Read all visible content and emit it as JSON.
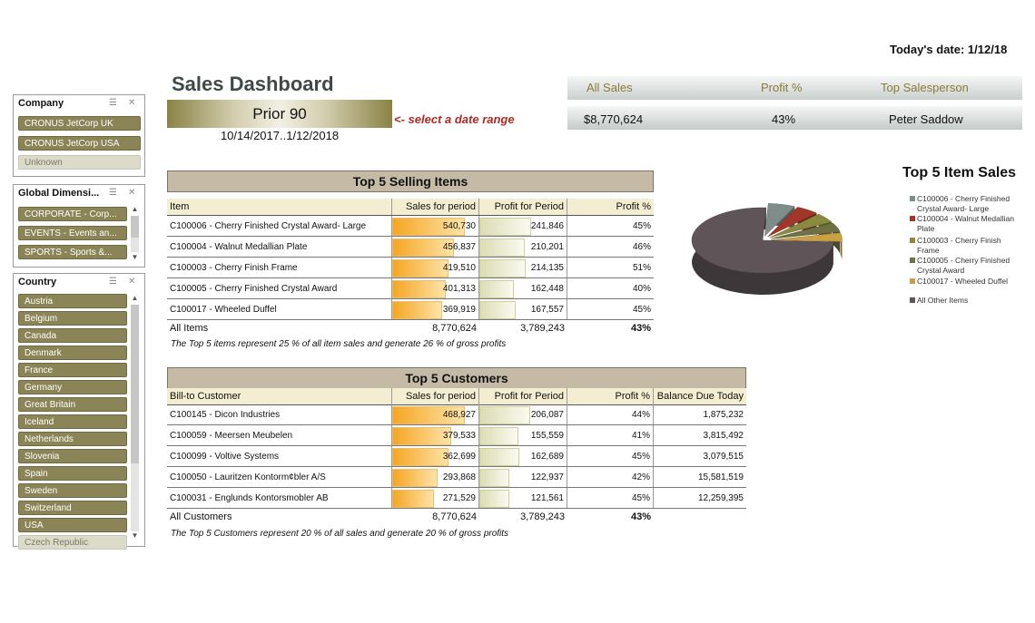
{
  "header": {
    "today_label": "Today's date: 1/12/18",
    "title": "Sales Dashboard",
    "range_button": "Prior 90",
    "range_hint": "<- select a date range",
    "range_dates": "10/14/2017..1/12/2018"
  },
  "kpi": {
    "labels": [
      "All Sales",
      "Profit %",
      "Top Salesperson"
    ],
    "values": [
      "$8,770,624",
      "43%",
      "Peter Saddow"
    ]
  },
  "slicers": {
    "company": {
      "title": "Company",
      "items": [
        {
          "label": "CRONUS JetCorp UK",
          "selected": true
        },
        {
          "label": "CRONUS JetCorp USA",
          "selected": true
        },
        {
          "label": "Unknown",
          "selected": false
        }
      ]
    },
    "dimension": {
      "title": "Global Dimensi...",
      "items": [
        {
          "label": "CORPORATE - Corp...",
          "selected": true
        },
        {
          "label": "EVENTS - Events an...",
          "selected": true
        },
        {
          "label": "SPORTS - Sports &...",
          "selected": true
        }
      ]
    },
    "country": {
      "title": "Country",
      "items": [
        {
          "label": "Austria",
          "selected": true
        },
        {
          "label": "Belgium",
          "selected": true
        },
        {
          "label": "Canada",
          "selected": true
        },
        {
          "label": "Denmark",
          "selected": true
        },
        {
          "label": "France",
          "selected": true
        },
        {
          "label": "Germany",
          "selected": true
        },
        {
          "label": "Great Britain",
          "selected": true
        },
        {
          "label": "Iceland",
          "selected": true
        },
        {
          "label": "Netherlands",
          "selected": true
        },
        {
          "label": "Slovenia",
          "selected": true
        },
        {
          "label": "Spain",
          "selected": true
        },
        {
          "label": "Sweden",
          "selected": true
        },
        {
          "label": "Switzerland",
          "selected": true
        },
        {
          "label": "USA",
          "selected": true
        },
        {
          "label": "Czech Republic",
          "selected": false
        }
      ]
    },
    "icons": [
      "multi-select-icon",
      "clear-filter-icon"
    ]
  },
  "items_table": {
    "title": "Top 5 Selling Items",
    "headers": [
      "Item",
      "Sales for period",
      "Profit for Period",
      "Profit %"
    ],
    "rows": [
      {
        "name": "C100006 - Cherry Finished Crystal Award- Large",
        "sales": "540,730",
        "profit": "241,846",
        "pct": "45%",
        "sales_v": 540730,
        "profit_v": 241846
      },
      {
        "name": "C100004 - Walnut Medallian Plate",
        "sales": "456,837",
        "profit": "210,201",
        "pct": "46%",
        "sales_v": 456837,
        "profit_v": 210201
      },
      {
        "name": "C100003 - Cherry Finish Frame",
        "sales": "419,510",
        "profit": "214,135",
        "pct": "51%",
        "sales_v": 419510,
        "profit_v": 214135
      },
      {
        "name": "C100005 - Cherry Finished Crystal Award",
        "sales": "401,313",
        "profit": "162,448",
        "pct": "40%",
        "sales_v": 401313,
        "profit_v": 162448
      },
      {
        "name": "C100017 - Wheeled Duffel",
        "sales": "369,919",
        "profit": "167,557",
        "pct": "45%",
        "sales_v": 369919,
        "profit_v": 167557
      }
    ],
    "total": {
      "label": "All Items",
      "sales": "8,770,624",
      "profit": "3,789,243",
      "pct": "43%"
    },
    "note": "The Top 5 items represent 25 % of all item sales and generate 26 % of gross profits"
  },
  "customers_table": {
    "title": "Top 5 Customers",
    "headers": [
      "Bill-to  Customer",
      "Sales for period",
      "Profit for Period",
      "Profit %",
      "Balance Due Today"
    ],
    "rows": [
      {
        "name": "C100145 - Dicon Industries",
        "sales": "468,927",
        "profit": "206,087",
        "pct": "44%",
        "balance": "1,875,232",
        "sales_v": 468927,
        "profit_v": 206087
      },
      {
        "name": "C100059 - Meersen Meubelen",
        "sales": "379,533",
        "profit": "155,559",
        "pct": "41%",
        "balance": "3,815,492",
        "sales_v": 379533,
        "profit_v": 155559
      },
      {
        "name": "C100099 - Voltive Systems",
        "sales": "362,699",
        "profit": "162,689",
        "pct": "45%",
        "balance": "3,079,515",
        "sales_v": 362699,
        "profit_v": 162689
      },
      {
        "name": "C100050 - Lauritzen Kontorm¢bler A/S",
        "sales": "293,868",
        "profit": "122,937",
        "pct": "42%",
        "balance": "15,581,519",
        "sales_v": 293868,
        "profit_v": 122937
      },
      {
        "name": "C100031 - Englunds Kontorsmobler AB",
        "sales": "271,529",
        "profit": "121,561",
        "pct": "45%",
        "balance": "12,259,395",
        "sales_v": 271529,
        "profit_v": 121561
      }
    ],
    "total": {
      "label": "All Customers",
      "sales": "8,770,624",
      "profit": "3,789,243",
      "pct": "43%"
    },
    "note": "The Top 5 Customers represent 20 % of all sales and generate 20 % of gross profits"
  },
  "chart_data": {
    "type": "pie",
    "title": "Top 5 Item Sales",
    "legend_position": "right",
    "categories": [
      "C100006 - Cherry Finished Crystal Award- Large",
      "C100004 - Walnut Medallian Plate",
      "C100003 - Cherry Finish Frame",
      "C100005 - Cherry Finished Crystal Award",
      "C100017 - Wheeled Duffel",
      "All Other Items"
    ],
    "values": [
      540730,
      456837,
      419510,
      401313,
      369919,
      6582315
    ],
    "colors": [
      "#7f8c8a",
      "#a2362b",
      "#8a8a3e",
      "#6e7046",
      "#c9a043",
      "#5f5558"
    ]
  }
}
